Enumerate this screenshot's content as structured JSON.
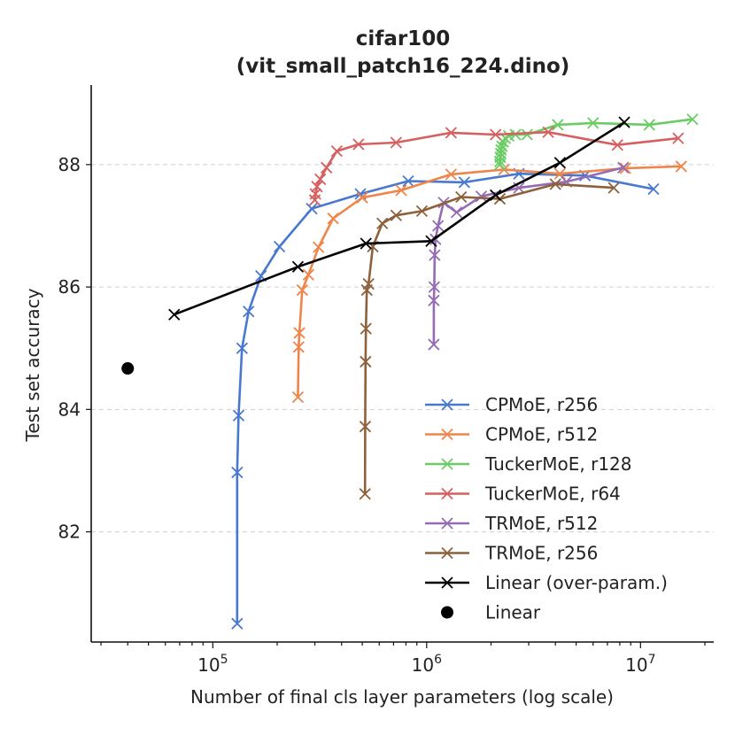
{
  "chart_data": {
    "type": "line",
    "title_line1": "cifar100",
    "title_line2": "(vit_small_patch16_224.dino)",
    "xlabel": "Number of final cls layer parameters (log scale)",
    "ylabel": "Test set accuracy",
    "xscale": "log",
    "xlim": [
      27000,
      22000000
    ],
    "ylim": [
      80.2,
      89.3
    ],
    "x_ticks": [
      {
        "value": 100000,
        "base": "10",
        "exp": "5"
      },
      {
        "value": 1000000,
        "base": "10",
        "exp": "6"
      },
      {
        "value": 10000000,
        "base": "10",
        "exp": "7"
      }
    ],
    "y_ticks": [
      {
        "value": 82,
        "label": "82"
      },
      {
        "value": 84,
        "label": "84"
      },
      {
        "value": 86,
        "label": "86"
      },
      {
        "value": 88,
        "label": "88"
      }
    ],
    "grid": "horizontal-dashed",
    "legend_position": "lower-right",
    "series": [
      {
        "name": "CPMoE, r256",
        "color": "#4878d0",
        "marker": "x",
        "x": [
          130000,
          130000,
          132000,
          137000,
          147000,
          168000,
          205000,
          290000,
          490000,
          820000,
          1500000,
          2700000,
          5500000,
          11500000
        ],
        "y": [
          80.5,
          82.97,
          83.9,
          85.0,
          85.6,
          86.18,
          86.66,
          87.28,
          87.52,
          87.73,
          87.71,
          87.85,
          87.82,
          87.6
        ]
      },
      {
        "name": "CPMoE, r512",
        "color": "#ee854a",
        "marker": "x",
        "x": [
          250000,
          252000,
          254000,
          262000,
          280000,
          312000,
          365000,
          500000,
          760000,
          1300000,
          2300000,
          4200000,
          8500000,
          15500000
        ],
        "y": [
          84.2,
          85.02,
          85.25,
          85.95,
          86.2,
          86.65,
          87.12,
          87.46,
          87.58,
          87.84,
          87.92,
          87.85,
          87.94,
          87.97
        ]
      },
      {
        "name": "TuckerMoE, r128",
        "color": "#6acc64",
        "marker": "x",
        "x": [
          2200000,
          2200000,
          2210000,
          2220000,
          2230000,
          2250000,
          2280000,
          2330000,
          2420000,
          2600000,
          2950000,
          4100000,
          6000000,
          11000000,
          17500000
        ],
        "y": [
          88.0,
          88.05,
          88.12,
          88.18,
          88.24,
          88.3,
          88.37,
          88.43,
          88.47,
          88.49,
          88.49,
          88.65,
          88.68,
          88.65,
          88.74
        ]
      },
      {
        "name": "TuckerMoE, r64",
        "color": "#d65f5f",
        "marker": "x",
        "x": [
          300000,
          302000,
          307000,
          318000,
          340000,
          380000,
          480000,
          720000,
          1300000,
          2100000,
          3700000,
          7800000,
          15000000
        ],
        "y": [
          87.42,
          87.52,
          87.64,
          87.76,
          87.95,
          88.22,
          88.33,
          88.36,
          88.52,
          88.49,
          88.53,
          88.32,
          88.43
        ]
      },
      {
        "name": "TRMoE, r512",
        "color": "#956cb4",
        "marker": "x",
        "x": [
          1080000,
          1080000,
          1085000,
          1090000,
          1100000,
          1130000,
          1200000,
          1380000,
          1800000,
          2700000,
          4500000,
          8300000
        ],
        "y": [
          85.06,
          85.78,
          86.0,
          86.52,
          86.78,
          87.0,
          87.38,
          87.22,
          87.48,
          87.62,
          87.72,
          87.95
        ]
      },
      {
        "name": "TRMoE, r256",
        "color": "#8c613c",
        "marker": "x",
        "x": [
          515000,
          516000,
          518000,
          520000,
          525000,
          535000,
          560000,
          620000,
          720000,
          950000,
          1450000,
          2200000,
          4000000,
          7500000
        ],
        "y": [
          82.62,
          83.72,
          84.78,
          85.32,
          85.95,
          86.05,
          86.66,
          87.04,
          87.17,
          87.24,
          87.47,
          87.44,
          87.68,
          87.62
        ]
      },
      {
        "name": "Linear (over-param.)",
        "color": "#000000",
        "marker": "x",
        "x": [
          66000,
          250000,
          520000,
          1050000,
          2100000,
          4200000,
          8400000
        ],
        "y": [
          85.55,
          86.33,
          86.71,
          86.75,
          87.5,
          88.03,
          88.69
        ]
      },
      {
        "name": "Linear",
        "color": "#000000",
        "marker": "o",
        "x": [
          40000
        ],
        "y": [
          84.67
        ]
      }
    ]
  }
}
